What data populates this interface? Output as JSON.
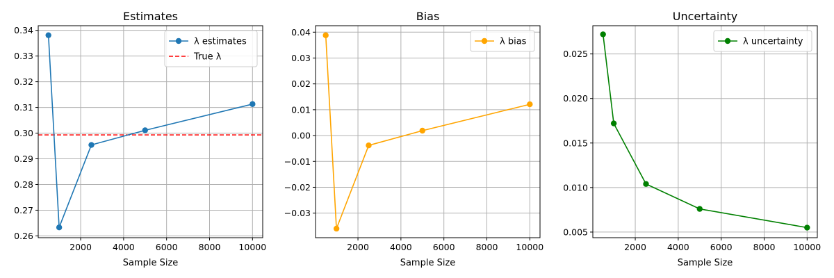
{
  "chart_data": [
    {
      "type": "line",
      "title": "Estimates",
      "xlabel": "Sample Size",
      "ylabel": "",
      "xlim": [
        25,
        10475
      ],
      "ylim": [
        0.2593,
        0.3418
      ],
      "xticks": [
        2000,
        4000,
        6000,
        8000,
        10000
      ],
      "yticks": [
        0.26,
        0.27,
        0.28,
        0.29,
        0.3,
        0.31,
        0.32,
        0.33,
        0.34
      ],
      "ytick_labels": [
        "0.26",
        "0.27",
        "0.28",
        "0.29",
        "0.30",
        "0.31",
        "0.32",
        "0.33",
        "0.34"
      ],
      "grid": true,
      "legend": "top-right",
      "series": [
        {
          "name": "λ estimates",
          "x": [
            500,
            1000,
            2500,
            5000,
            10000
          ],
          "y": [
            0.3381,
            0.2633,
            0.2954,
            0.3011,
            0.3113
          ],
          "color": "#1f77b4",
          "marker": "o"
        }
      ],
      "reference_lines": [
        {
          "name": "True λ",
          "y": 0.2993,
          "color": "#ff0000",
          "style": "dashed"
        }
      ]
    },
    {
      "type": "line",
      "title": "Bias",
      "xlabel": "Sample Size",
      "ylabel": "",
      "xlim": [
        25,
        10475
      ],
      "ylim": [
        -0.0395,
        0.0425
      ],
      "xticks": [
        2000,
        4000,
        6000,
        8000,
        10000
      ],
      "yticks": [
        -0.03,
        -0.02,
        -0.01,
        0.0,
        0.01,
        0.02,
        0.03,
        0.04
      ],
      "ytick_labels": [
        "−0.03",
        "−0.02",
        "−0.01",
        "0.00",
        "0.01",
        "0.02",
        "0.03",
        "0.04"
      ],
      "grid": true,
      "legend": "top-right",
      "series": [
        {
          "name": "λ bias",
          "x": [
            500,
            1000,
            2500,
            5000,
            10000
          ],
          "y": [
            0.0388,
            -0.036,
            -0.0038,
            0.0019,
            0.0121
          ],
          "color": "#ffa500",
          "marker": "o"
        }
      ]
    },
    {
      "type": "line",
      "title": "Uncertainty",
      "xlabel": "Sample Size",
      "ylabel": "",
      "xlim": [
        25,
        10475
      ],
      "ylim": [
        0.00437,
        0.02817
      ],
      "xticks": [
        2000,
        4000,
        6000,
        8000,
        10000
      ],
      "yticks": [
        0.005,
        0.01,
        0.015,
        0.02,
        0.025
      ],
      "ytick_labels": [
        "0.005",
        "0.010",
        "0.015",
        "0.020",
        "0.025"
      ],
      "grid": true,
      "legend": "top-right",
      "series": [
        {
          "name": "λ uncertainty",
          "x": [
            500,
            1000,
            2500,
            5000,
            10000
          ],
          "y": [
            0.0272,
            0.0172,
            0.0104,
            0.0076,
            0.0055
          ],
          "color": "#008000",
          "marker": "o"
        }
      ]
    }
  ]
}
